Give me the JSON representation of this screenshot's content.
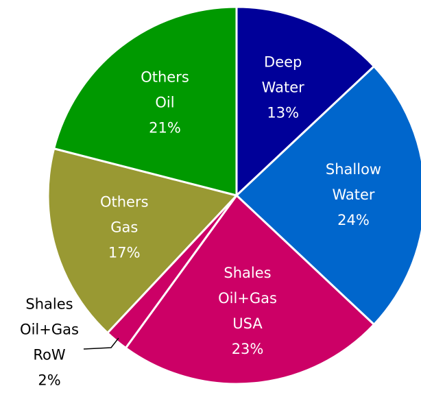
{
  "chart_data": {
    "type": "pie",
    "categories": [
      "Deep Water",
      "Shallow Water",
      "Shales Oil+Gas USA",
      "Shales Oil+Gas RoW",
      "Others Gas",
      "Others Oil"
    ],
    "values": [
      13,
      24,
      23,
      2,
      17,
      21
    ],
    "value_labels": [
      "13%",
      "24%",
      "23%",
      "2%",
      "17%",
      "21%"
    ],
    "colors": [
      "#000099",
      "#0066cc",
      "#cc0066",
      "#cc0066",
      "#999933",
      "#009900"
    ]
  }
}
